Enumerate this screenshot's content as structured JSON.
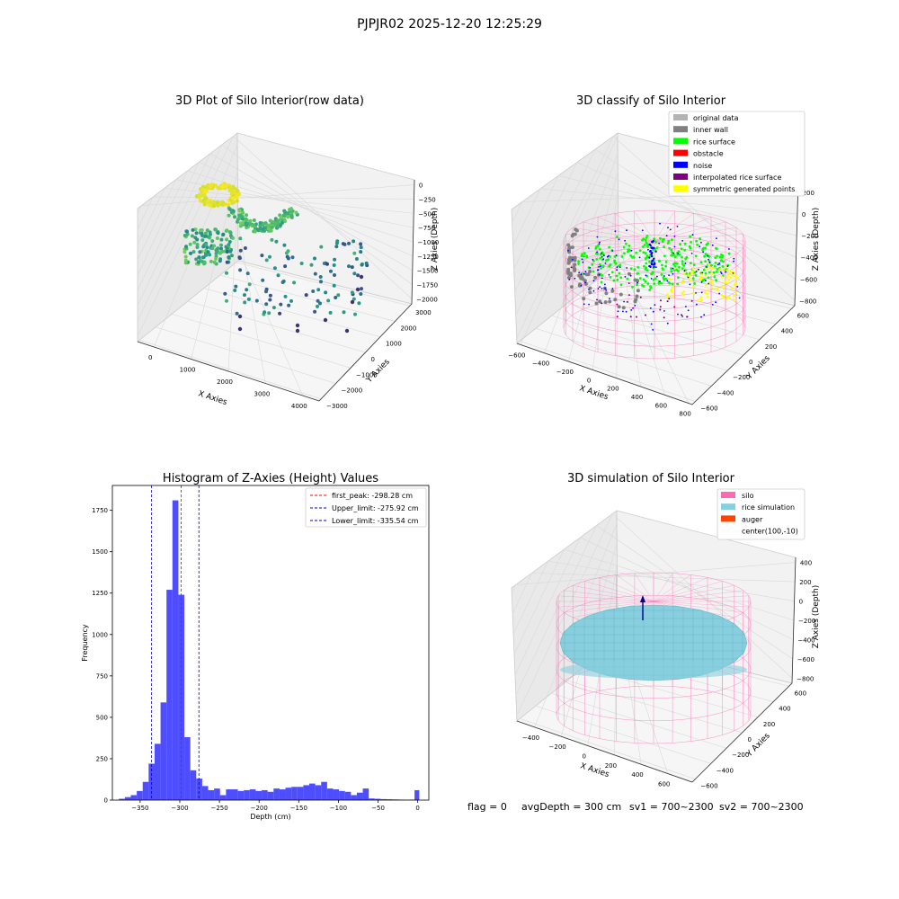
{
  "figure": {
    "suptitle": "PJPJR02 2025-12-20 12:25:29",
    "footer": {
      "flag": "flag = 0",
      "avg_depth": "avgDepth = 300 cm",
      "sv1": "sv1 = 700~2300",
      "sv2": "sv2 = 700~2300"
    }
  },
  "colors": {
    "hist_bar": "#4444ff",
    "first_peak": "#ff0000",
    "limits": "#0000cc",
    "original_data": "#b3b3b3",
    "inner_wall": "#808080",
    "rice_surface": "#00ff00",
    "obstacle": "#ff0000",
    "noise": "#0000ff",
    "interpolated_rice_surface": "#800080",
    "symmetric_generated_points": "#ffff00",
    "silo": "#ff69b4",
    "rice_simulation": "#87cede",
    "auger": "#ff4500"
  },
  "chart_data": [
    {
      "type": "scatter",
      "projection": "3d",
      "title": "3D Plot of Silo Interior(row data)",
      "xlabel": "X Axies",
      "ylabel": "Y Axies",
      "zlabel": "Z Axies (Depth)",
      "x_ticks": [
        "0",
        "1000",
        "2000",
        "3000",
        "4000"
      ],
      "y_ticks": [
        "3000",
        "2000",
        "1000",
        "0",
        "−1000",
        "−2000",
        "−3000"
      ],
      "z_ticks": [
        "0",
        "−250",
        "−500",
        "−750",
        "−1000",
        "−1250",
        "−1500",
        "−1750",
        "−2000"
      ],
      "xlim": [
        -500,
        4500
      ],
      "ylim": [
        -3000,
        3000
      ],
      "zlim": [
        -2100,
        100
      ],
      "colormap": "viridis by depth"
    },
    {
      "type": "scatter",
      "projection": "3d",
      "title": "3D classify of Silo Interior",
      "xlabel": "X Axies",
      "ylabel": "Y Axies",
      "zlabel": "Z Axies (Depth)",
      "x_ticks": [
        "−600",
        "−400",
        "−200",
        "0",
        "200",
        "400",
        "600",
        "800"
      ],
      "y_ticks": [
        "600",
        "400",
        "200",
        "0",
        "−200",
        "−400",
        "−600"
      ],
      "z_ticks": [
        "200",
        "0",
        "−200",
        "−400",
        "−600",
        "−800"
      ],
      "legend": [
        "original data",
        "inner wall",
        "rice surface",
        "obstacle",
        "noise",
        "interpolated rice surface",
        "symmetric generated points"
      ],
      "legend_position": "top-right"
    },
    {
      "type": "bar",
      "title": "Histogram of Z-Axies (Height) Values",
      "xlabel": "Depth (cm)",
      "ylabel": "Frequency",
      "xlim": [
        -385,
        14
      ],
      "ylim": [
        0,
        1900
      ],
      "x_ticks": [
        -350,
        -300,
        -250,
        -200,
        -150,
        -100,
        -50,
        0
      ],
      "y_ticks": [
        0,
        250,
        500,
        750,
        1000,
        1250,
        1500,
        1750
      ],
      "bin_width": 7.5,
      "bins": [
        [
          -373,
          8
        ],
        [
          -365.5,
          18
        ],
        [
          -358,
          30
        ],
        [
          -350.5,
          55
        ],
        [
          -343,
          110
        ],
        [
          -335.5,
          220
        ],
        [
          -328,
          340
        ],
        [
          -320.5,
          590
        ],
        [
          -313,
          1270
        ],
        [
          -305.5,
          1810
        ],
        [
          -298,
          1240
        ],
        [
          -290.5,
          380
        ],
        [
          -283,
          180
        ],
        [
          -275.5,
          130
        ],
        [
          -268,
          85
        ],
        [
          -260.5,
          60
        ],
        [
          -253,
          70
        ],
        [
          -245.5,
          30
        ],
        [
          -238,
          65
        ],
        [
          -230.5,
          65
        ],
        [
          -223,
          55
        ],
        [
          -215.5,
          60
        ],
        [
          -208,
          65
        ],
        [
          -200.5,
          55
        ],
        [
          -193,
          60
        ],
        [
          -185.5,
          50
        ],
        [
          -178,
          70
        ],
        [
          -170.5,
          65
        ],
        [
          -163,
          75
        ],
        [
          -155.5,
          80
        ],
        [
          -148,
          80
        ],
        [
          -140.5,
          90
        ],
        [
          -133,
          100
        ],
        [
          -125.5,
          90
        ],
        [
          -118,
          110
        ],
        [
          -110.5,
          70
        ],
        [
          -103,
          65
        ],
        [
          -95.5,
          55
        ],
        [
          -88,
          50
        ],
        [
          -80.5,
          30
        ],
        [
          -73,
          45
        ],
        [
          -65.5,
          70
        ],
        [
          -58,
          10
        ],
        [
          -50.5,
          8
        ],
        [
          -43,
          6
        ],
        [
          -35.5,
          5
        ],
        [
          -28,
          4
        ],
        [
          -20.5,
          3
        ],
        [
          -13,
          2
        ],
        [
          -5.5,
          3
        ],
        [
          -1,
          60
        ]
      ],
      "vlines": [
        {
          "label": "first_peak: -298.28 cm",
          "x": -298.28,
          "color": "red"
        },
        {
          "label": "Upper_limit: -275.92 cm",
          "x": -275.92,
          "color": "blue"
        },
        {
          "label": "Lower_limit: -335.54 cm",
          "x": -335.54,
          "color": "blue"
        }
      ],
      "legend_position": "top-right"
    },
    {
      "type": "surface",
      "projection": "3d",
      "title": "3D simulation of Silo Interior",
      "xlabel": "X Axies",
      "ylabel": "Y Axies",
      "zlabel": "Z Axies (Depth)",
      "x_ticks": [
        "−400",
        "−200",
        "0",
        "200",
        "400",
        "600"
      ],
      "y_ticks": [
        "600",
        "400",
        "200",
        "0",
        "−200",
        "−400",
        "−600"
      ],
      "z_ticks": [
        "400",
        "200",
        "0",
        "−200",
        "−400",
        "−600",
        "−800"
      ],
      "legend": [
        "silo",
        "rice simulation",
        "auger",
        "center(100,-10)"
      ],
      "legend_position": "top-right"
    }
  ]
}
